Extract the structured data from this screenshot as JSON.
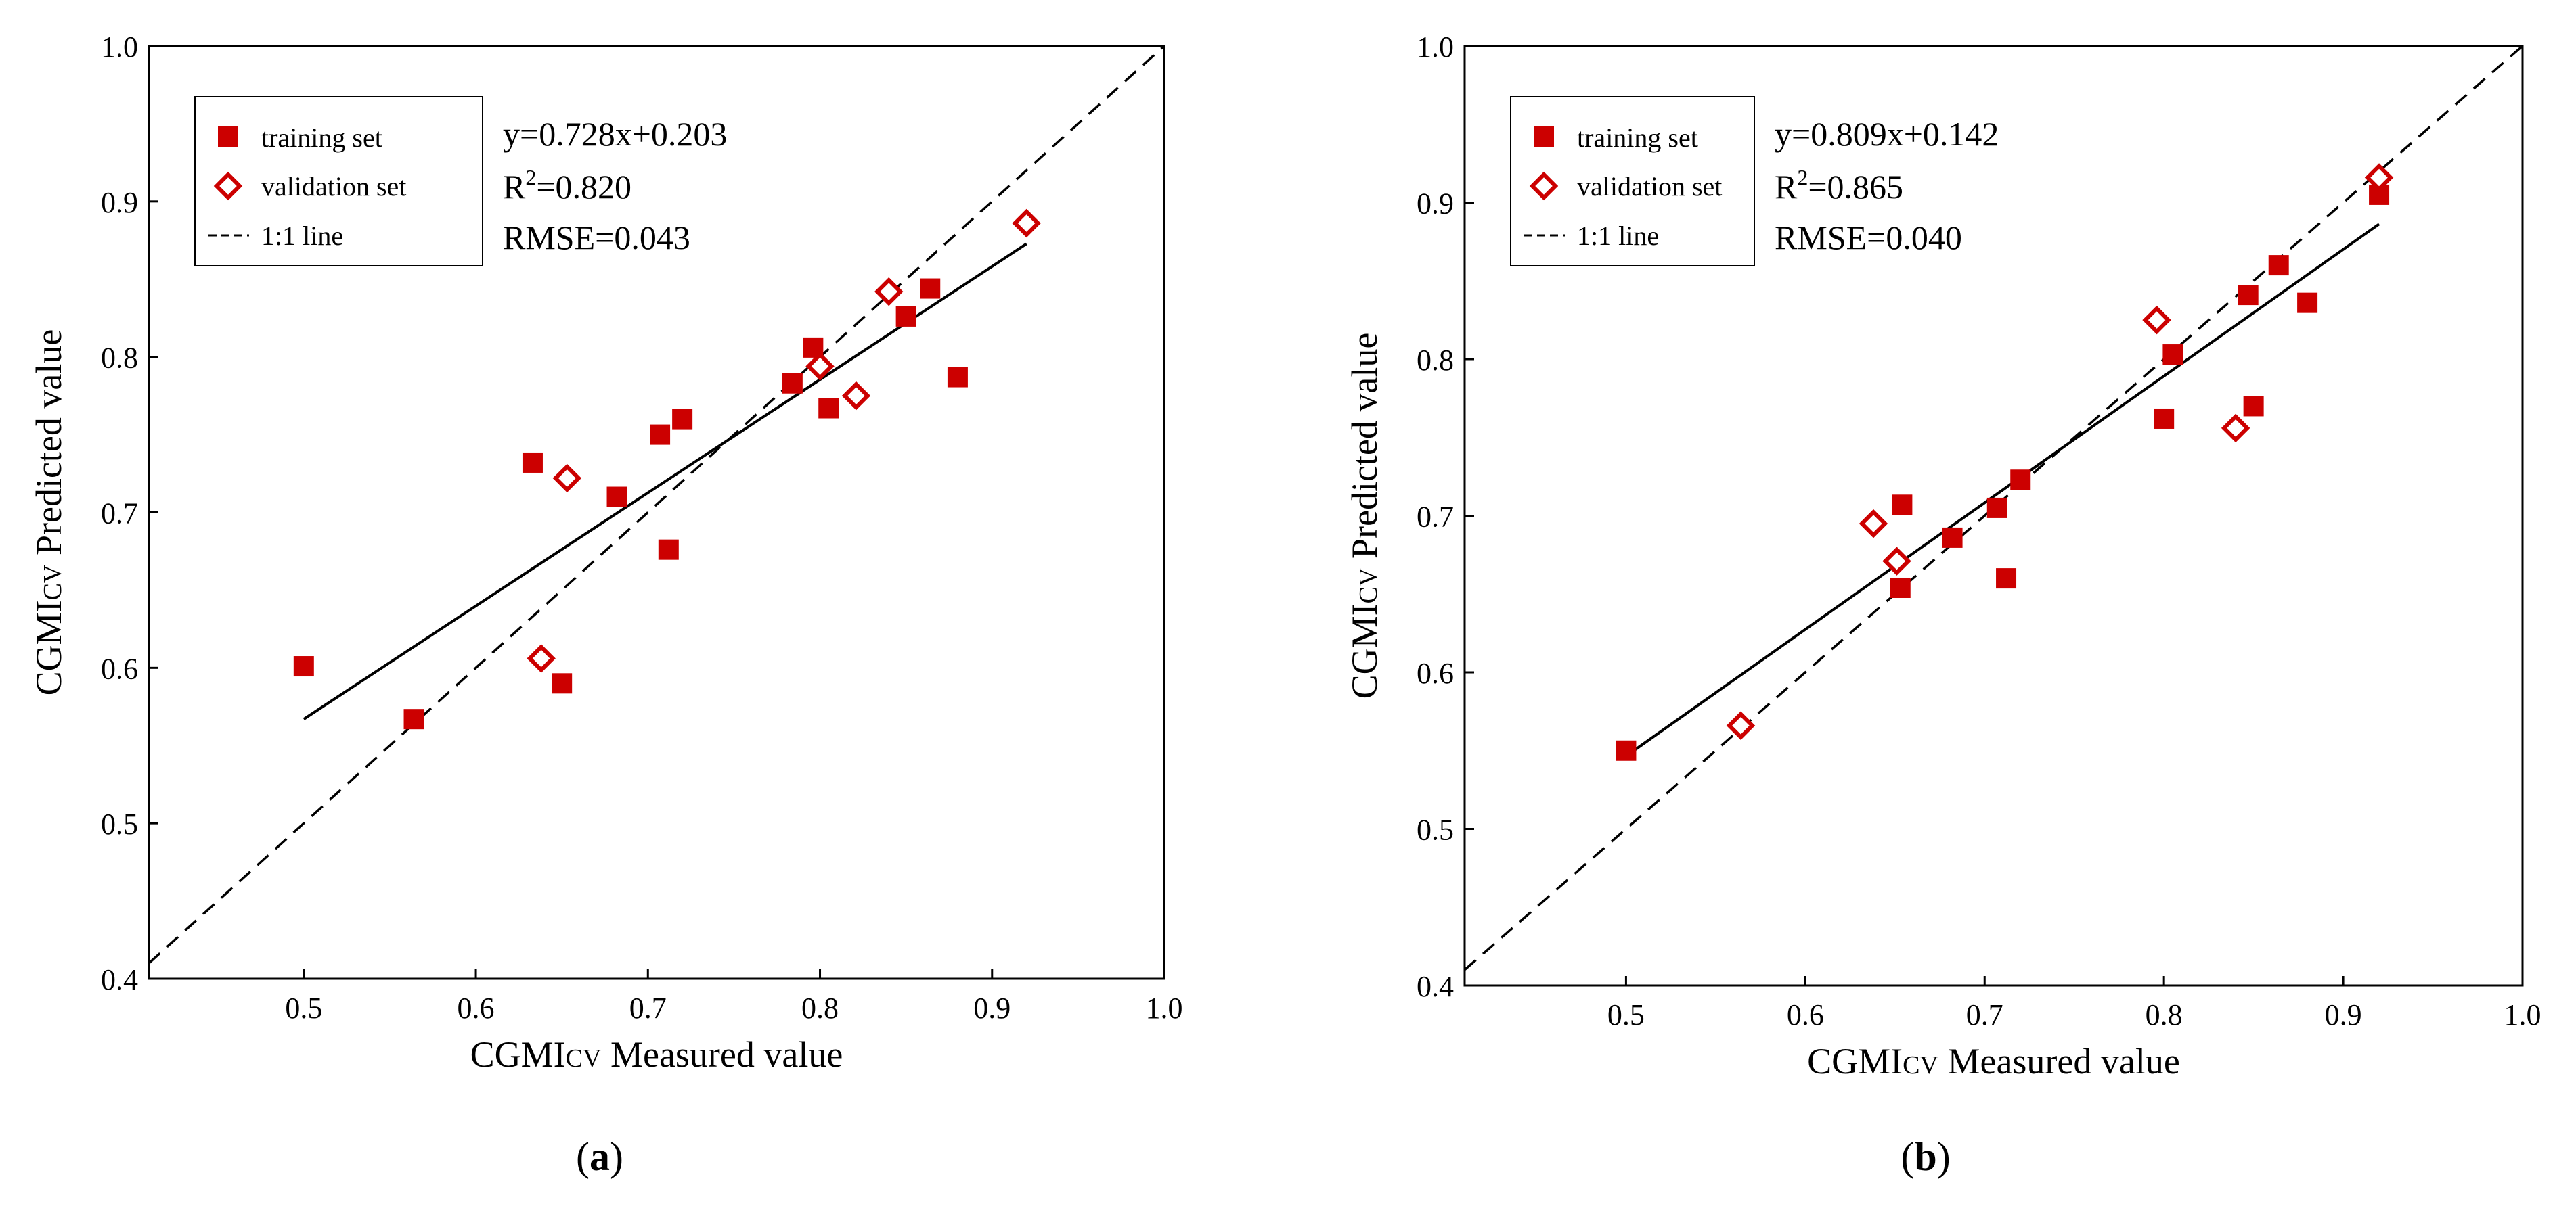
{
  "colors": {
    "marker": "#cc0000",
    "line": "#000000",
    "axis": "#000000"
  },
  "chart_data": [
    {
      "type": "scatter",
      "panel_label": "a",
      "xlabel": {
        "main": "CGMI",
        "sub": "CV",
        "rest": " Measured value"
      },
      "ylabel": {
        "main": "CGMI",
        "sub": "CV",
        "rest": " Predicted value"
      },
      "xlim": [
        0.41,
        1.0
      ],
      "ylim": [
        0.4,
        1.0
      ],
      "x_ticks": [
        0.5,
        0.6,
        0.7,
        0.8,
        0.9,
        1.0
      ],
      "x_tick_labels": [
        "0.5",
        "0.6",
        "0.7",
        "0.8",
        "0.9",
        "1.0"
      ],
      "y_ticks": [
        0.4,
        0.5,
        0.6,
        0.7,
        0.8,
        0.9,
        1.0
      ],
      "y_tick_labels": [
        "0.4",
        "0.5",
        "0.6",
        "0.7",
        "0.8",
        "0.9",
        "1.0"
      ],
      "legend": [
        {
          "label": "training set",
          "marker": "square-filled"
        },
        {
          "label": "validation set",
          "marker": "diamond-open"
        },
        {
          "label": "1:1 line",
          "marker": "dashed-line"
        }
      ],
      "equation": {
        "text": "y=0.728x+0.203",
        "slope": 0.728,
        "intercept": 0.203
      },
      "r2": {
        "label": "R",
        "sup": "2",
        "value": "=0.820"
      },
      "rmse": "RMSE=0.043",
      "fit_x_range": [
        0.5,
        0.92
      ],
      "identity_line": [
        0.41,
        1.0
      ],
      "series": [
        {
          "name": "training set",
          "points": [
            [
              0.5,
              0.601
            ],
            [
              0.564,
              0.567
            ],
            [
              0.633,
              0.732
            ],
            [
              0.65,
              0.59
            ],
            [
              0.682,
              0.71
            ],
            [
              0.707,
              0.75
            ],
            [
              0.712,
              0.676
            ],
            [
              0.72,
              0.76
            ],
            [
              0.784,
              0.783
            ],
            [
              0.796,
              0.806
            ],
            [
              0.805,
              0.767
            ],
            [
              0.85,
              0.826
            ],
            [
              0.864,
              0.844
            ],
            [
              0.88,
              0.787
            ]
          ]
        },
        {
          "name": "validation set",
          "points": [
            [
              0.638,
              0.606
            ],
            [
              0.653,
              0.722
            ],
            [
              0.8,
              0.794
            ],
            [
              0.821,
              0.775
            ],
            [
              0.84,
              0.842
            ],
            [
              0.92,
              0.886
            ]
          ]
        }
      ]
    },
    {
      "type": "scatter",
      "panel_label": "b",
      "xlabel": {
        "main": "CGMI",
        "sub": "CV",
        "rest": " Measured value"
      },
      "ylabel": {
        "main": "CGMI",
        "sub": "CV",
        "rest": " Predicted value"
      },
      "xlim": [
        0.41,
        1.0
      ],
      "ylim": [
        0.4,
        1.0
      ],
      "x_ticks": [
        0.5,
        0.6,
        0.7,
        0.8,
        0.9,
        1.0
      ],
      "x_tick_labels": [
        "0.5",
        "0.6",
        "0.7",
        "0.8",
        "0.9",
        "1.0"
      ],
      "y_ticks": [
        0.4,
        0.5,
        0.6,
        0.7,
        0.8,
        0.9,
        1.0
      ],
      "y_tick_labels": [
        "0.4",
        "0.5",
        "0.6",
        "0.7",
        "0.8",
        "0.9",
        "1.0"
      ],
      "legend": [
        {
          "label": "training set",
          "marker": "square-filled"
        },
        {
          "label": "validation set",
          "marker": "diamond-open"
        },
        {
          "label": "1:1 line",
          "marker": "dashed-line"
        }
      ],
      "equation": {
        "text": "y=0.809x+0.142",
        "slope": 0.809,
        "intercept": 0.142
      },
      "r2": {
        "label": "R",
        "sup": "2",
        "value": "=0.865"
      },
      "rmse": "RMSE=0.040",
      "fit_x_range": [
        0.5,
        0.92
      ],
      "identity_line": [
        0.41,
        1.0
      ],
      "series": [
        {
          "name": "training set",
          "points": [
            [
              0.5,
              0.55
            ],
            [
              0.653,
              0.654
            ],
            [
              0.654,
              0.707
            ],
            [
              0.682,
              0.686
            ],
            [
              0.707,
              0.705
            ],
            [
              0.712,
              0.66
            ],
            [
              0.72,
              0.723
            ],
            [
              0.8,
              0.762
            ],
            [
              0.805,
              0.803
            ],
            [
              0.847,
              0.841
            ],
            [
              0.85,
              0.77
            ],
            [
              0.864,
              0.86
            ],
            [
              0.88,
              0.836
            ],
            [
              0.92,
              0.905
            ]
          ]
        },
        {
          "name": "validation set",
          "points": [
            [
              0.564,
              0.566
            ],
            [
              0.638,
              0.695
            ],
            [
              0.651,
              0.671
            ],
            [
              0.796,
              0.825
            ],
            [
              0.84,
              0.756
            ],
            [
              0.92,
              0.916
            ]
          ]
        }
      ]
    }
  ]
}
